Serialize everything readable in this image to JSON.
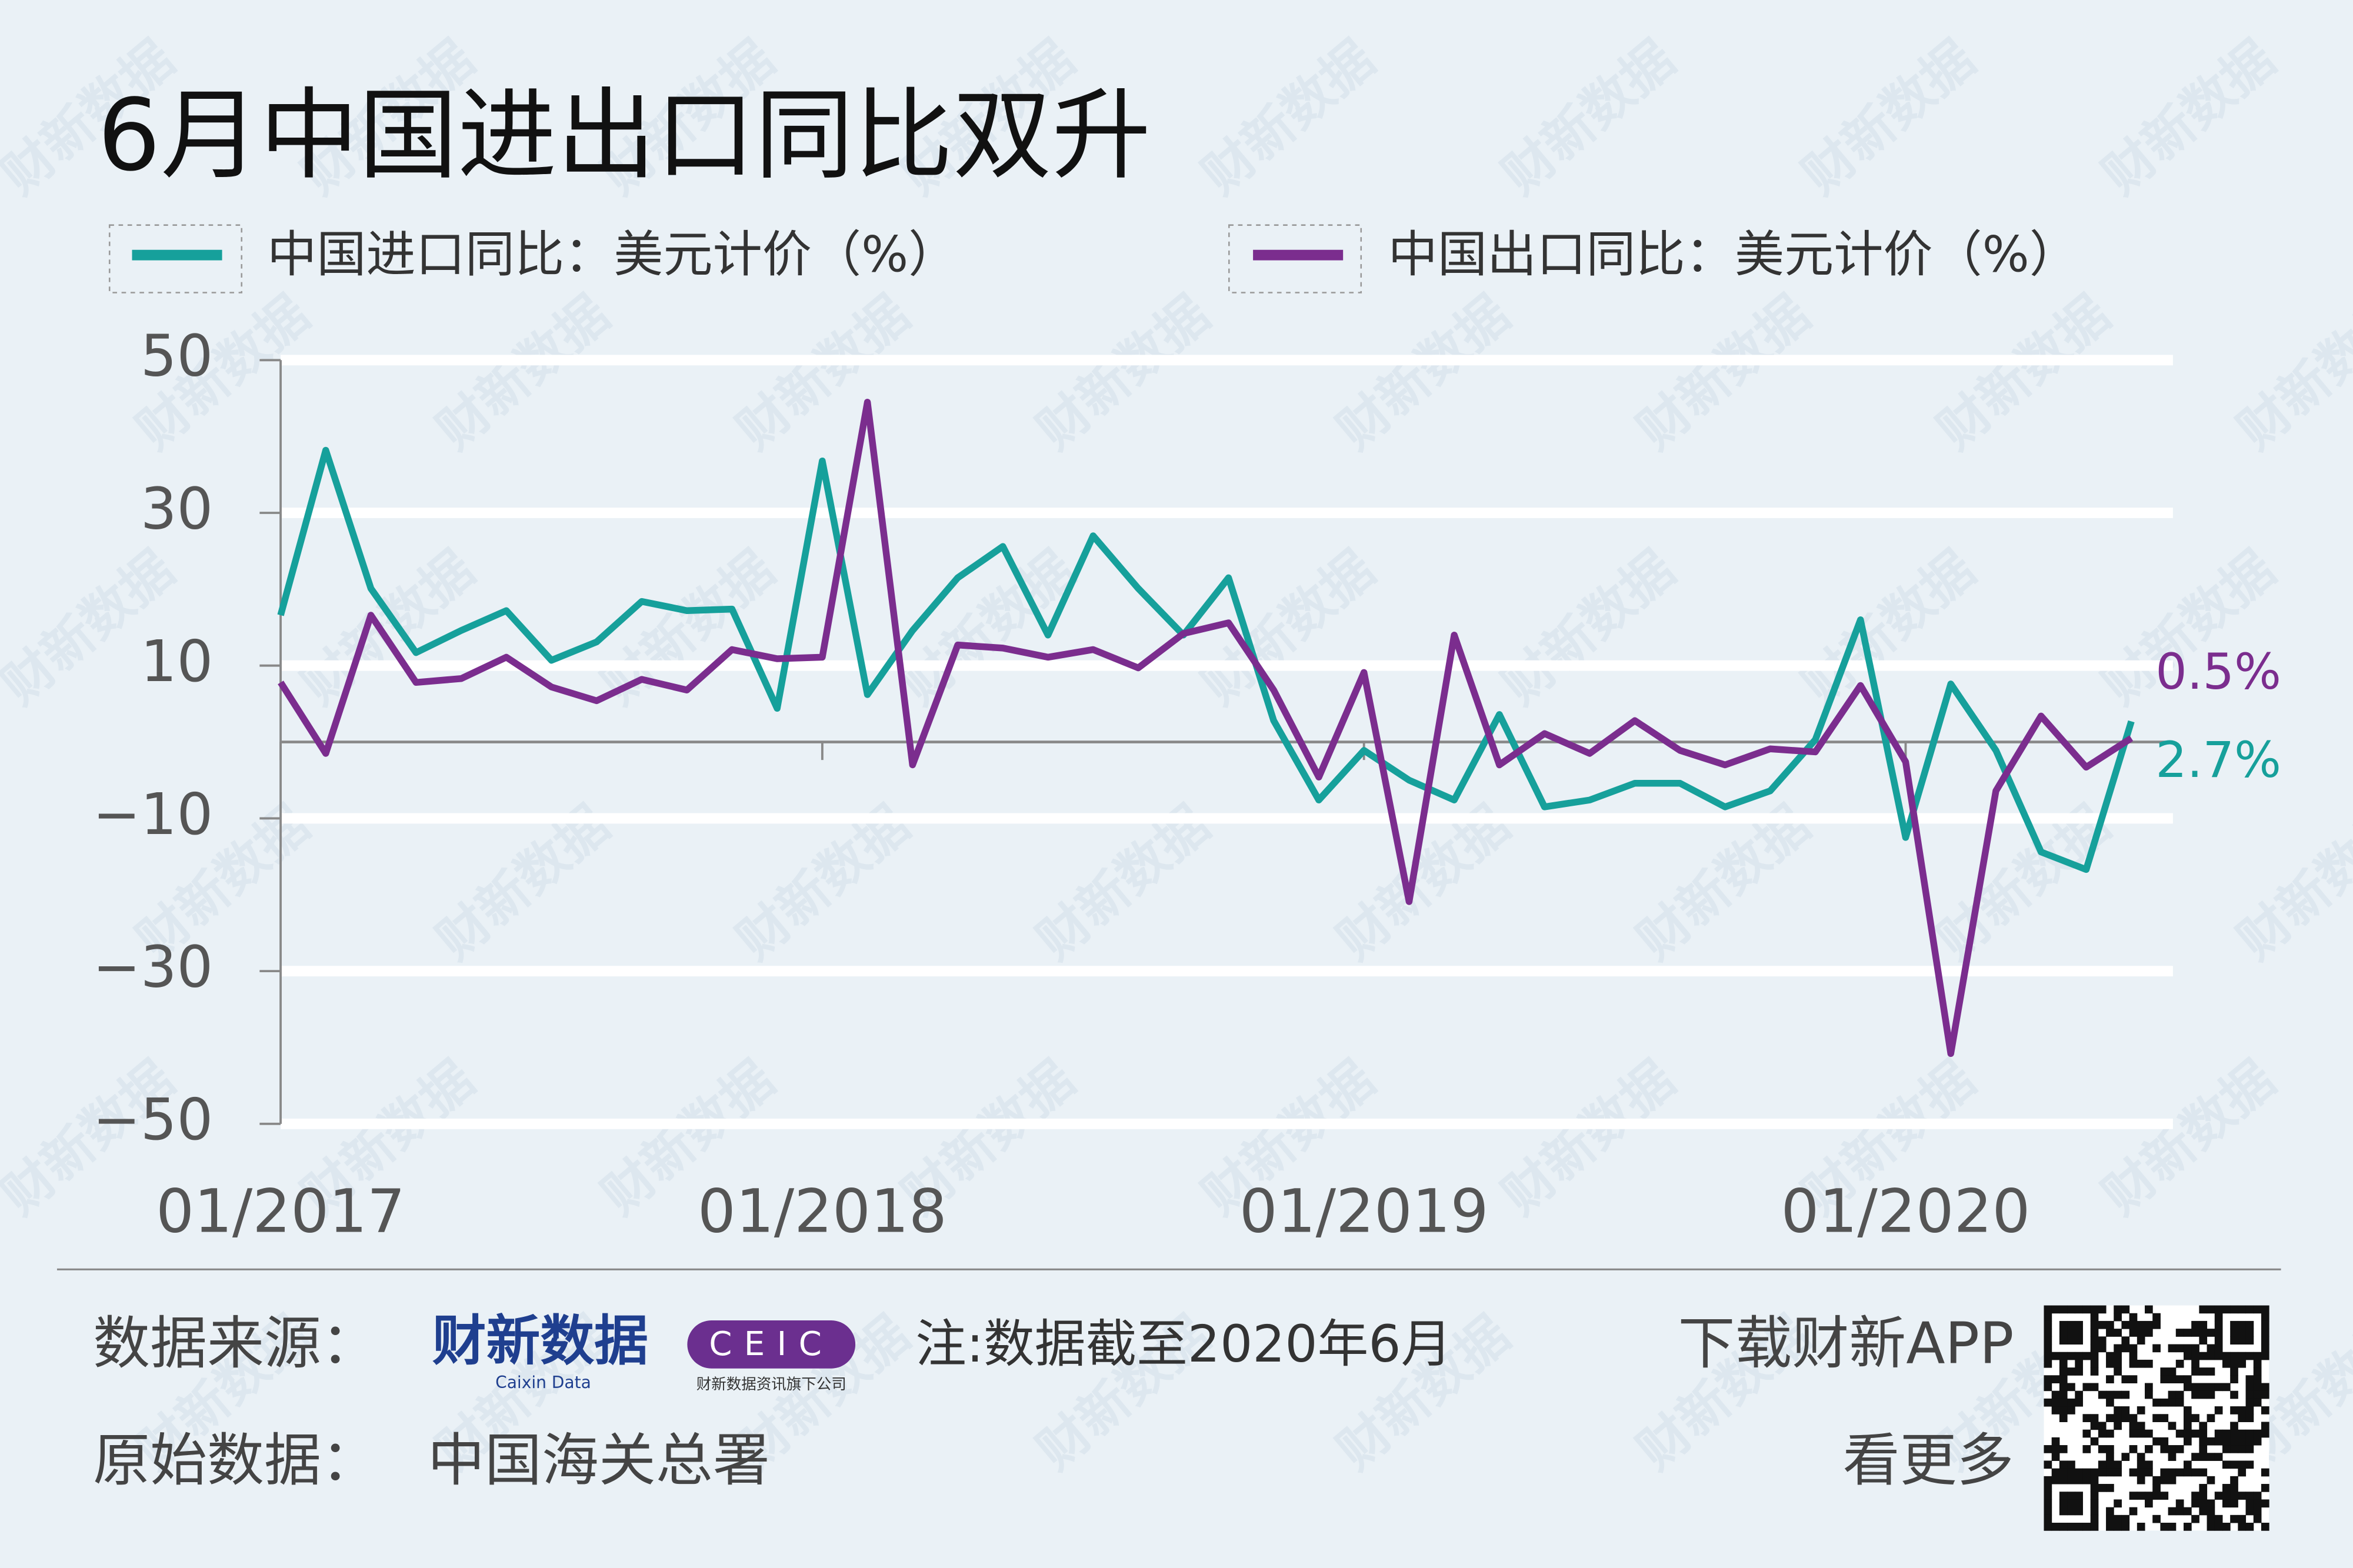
{
  "chart_data": {
    "type": "line",
    "title": "6月中国进出口同比双升",
    "watermark": "财新数据",
    "categories": [
      "01/2017",
      null,
      null,
      null,
      null,
      null,
      null,
      null,
      null,
      null,
      null,
      null,
      "01/2018",
      null,
      null,
      null,
      null,
      null,
      null,
      null,
      null,
      null,
      null,
      null,
      "01/2019",
      null,
      null,
      null,
      null,
      null,
      null,
      null,
      null,
      null,
      null,
      null,
      "01/2020",
      null,
      null,
      null,
      null,
      null
    ],
    "series": [
      {
        "name": "中国进口同比：美元计价（%）",
        "color": "#16a09b",
        "values": [
          16.6,
          38.2,
          20.1,
          11.7,
          14.6,
          17.2,
          10.7,
          13.1,
          18.4,
          17.2,
          17.4,
          4.4,
          36.8,
          6.2,
          14.6,
          21.5,
          25.6,
          14.0,
          27.0,
          20.1,
          14.0,
          21.5,
          2.8,
          -7.6,
          -1.1,
          -5.0,
          -7.6,
          3.6,
          -8.5,
          -7.6,
          -5.4,
          -5.4,
          -8.5,
          -6.4,
          0.3,
          16.0,
          -12.5,
          7.6,
          -1.1,
          -14.4,
          -16.7,
          2.7
        ],
        "value_labels": [
          null,
          null,
          null,
          null,
          null,
          null,
          null,
          null,
          null,
          null,
          null,
          null,
          null,
          null,
          null,
          null,
          null,
          null,
          null,
          null,
          null,
          null,
          null,
          null,
          null,
          null,
          null,
          null,
          null,
          null,
          null,
          null,
          null,
          null,
          null,
          null,
          null,
          null,
          null,
          null,
          null,
          "2.7%"
        ]
      },
      {
        "name": "中国出口同比：美元计价（%）",
        "color": "#7b2d8e",
        "values": [
          7.8,
          -1.5,
          16.6,
          7.8,
          8.3,
          11.1,
          7.2,
          5.4,
          8.2,
          6.8,
          12.1,
          10.9,
          11.1,
          44.5,
          -3.0,
          12.7,
          12.3,
          11.1,
          12.1,
          9.7,
          14.2,
          15.6,
          6.8,
          -4.6,
          9.1,
          -20.9,
          14.0,
          -3.0,
          1.1,
          -1.5,
          2.8,
          -1.1,
          -3.0,
          -0.9,
          -1.3,
          7.4,
          -2.6,
          -40.8,
          -6.4,
          3.4,
          -3.3,
          0.5
        ],
        "value_labels": [
          null,
          null,
          null,
          null,
          null,
          null,
          null,
          null,
          null,
          null,
          null,
          null,
          null,
          null,
          null,
          null,
          null,
          null,
          null,
          null,
          null,
          null,
          null,
          null,
          null,
          null,
          null,
          null,
          null,
          null,
          null,
          null,
          null,
          null,
          null,
          null,
          null,
          null,
          null,
          null,
          null,
          "0.5%"
        ]
      }
    ],
    "ylim": [
      -50,
      50
    ],
    "yticks": [
      50,
      30,
      10,
      {
        "value": -10,
        "label": "−10"
      },
      {
        "value": -30,
        "label": "−30"
      },
      {
        "value": -50,
        "label": "−50"
      }
    ],
    "grid": true
  },
  "footer": {
    "source_label": "数据来源：",
    "logo": "财新数据",
    "logo_sub": "Caixin Data",
    "ceic": "CEIC",
    "ceic_sub": "财新数据资讯旗下公司",
    "note": "注:数据截至2020年6月",
    "download": "下载财新APP",
    "more": "看更多",
    "origin_label": "原始数据：",
    "origin": "中国海关总署"
  }
}
